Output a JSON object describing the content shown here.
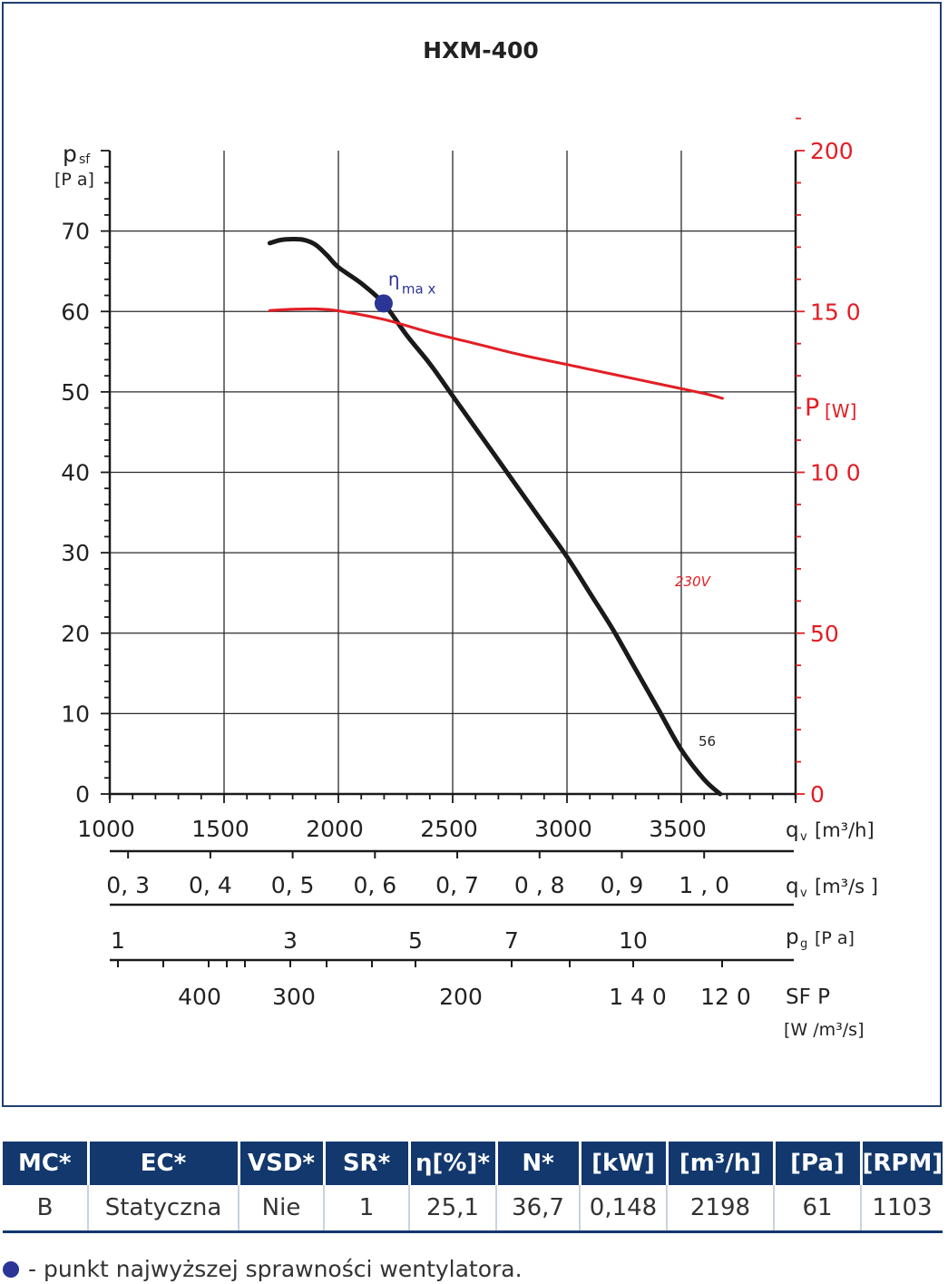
{
  "chart_data": {
    "type": "line",
    "title": "HXM-400",
    "y_left": {
      "label_main": "p",
      "label_sub": "sf",
      "unit": "[P a]",
      "ticks": [
        "0",
        "10",
        "20",
        "30",
        "40",
        "50",
        "60",
        "70"
      ],
      "range": [
        0,
        80
      ]
    },
    "y_right": {
      "label_main": "P",
      "unit": "[W]",
      "ticks": [
        "0",
        "50",
        "10 0",
        "15 0",
        "200"
      ],
      "tick_values": [
        0,
        50,
        100,
        150,
        200
      ],
      "range": [
        0,
        200
      ]
    },
    "x": {
      "label_main": "q",
      "label_sub": "v",
      "unit": "[m³/h]",
      "ticks": [
        "1000",
        "1500",
        "2000",
        "2500",
        "3000",
        "3500"
      ],
      "tick_values": [
        1000,
        1500,
        2000,
        2500,
        3000,
        3500
      ],
      "range": [
        1000,
        4000
      ]
    },
    "series": [
      {
        "name": "56",
        "axis": "left",
        "color": "#1a1a1a",
        "x": [
          1700,
          1750,
          1800,
          1850,
          1900,
          1950,
          2000,
          2100,
          2198,
          2300,
          2400,
          2500,
          2600,
          2700,
          2800,
          2900,
          3000,
          3100,
          3200,
          3300,
          3400,
          3500,
          3600,
          3670
        ],
        "y": [
          68.5,
          68.9,
          69.0,
          68.9,
          68.3,
          67.0,
          65.5,
          63.5,
          61.0,
          57.0,
          53.5,
          49.5,
          45.5,
          41.5,
          37.5,
          33.5,
          29.5,
          25.0,
          20.5,
          15.5,
          10.5,
          5.5,
          1.8,
          0.0
        ]
      },
      {
        "name": "230V",
        "axis": "right",
        "color": "#e31e24",
        "x": [
          1700,
          1800,
          1900,
          2000,
          2200,
          2400,
          2600,
          2800,
          3000,
          3200,
          3400,
          3600,
          3680
        ],
        "y": [
          150.3,
          150.7,
          150.8,
          150.2,
          147.5,
          143.5,
          140.0,
          136.5,
          133.5,
          130.5,
          127.5,
          124.5,
          123.0
        ]
      }
    ],
    "eta_max": {
      "x": 2198,
      "y": 61.0,
      "label_main": "η",
      "label_sub": "ma x"
    },
    "scales": [
      {
        "label_main": "q",
        "label_sub": "v",
        "unit": "[m³/s ]",
        "ticks": [
          {
            "text": "0, 3",
            "v": 0.3
          },
          {
            "text": "0, 4",
            "v": 0.4
          },
          {
            "text": "0, 5",
            "v": 0.5
          },
          {
            "text": "0, 6",
            "v": 0.6
          },
          {
            "text": "0, 7",
            "v": 0.7
          },
          {
            "text": "0 , 8",
            "v": 0.8
          },
          {
            "text": "0, 9",
            "v": 0.9
          },
          {
            "text": "1 , 0",
            "v": 1.0
          }
        ]
      },
      {
        "label_main": "p",
        "label_sub": "g",
        "unit": "[P a]",
        "ticks": [
          {
            "text": "1",
            "v": 1
          },
          {
            "text": "3",
            "v": 3
          },
          {
            "text": "5",
            "v": 5
          },
          {
            "text": "7",
            "v": 7
          },
          {
            "text": "10",
            "v": 10
          }
        ]
      },
      {
        "label_main": "SF P",
        "unit": "[W /m³/s]",
        "ticks": [
          {
            "text": "400",
            "v": 400
          },
          {
            "text": "300",
            "v": 300
          },
          {
            "text": "200",
            "v": 200
          },
          {
            "text": "1 4 0",
            "v": 140
          },
          {
            "text": "12 0",
            "v": 120
          }
        ]
      }
    ],
    "grid": true
  },
  "table": {
    "headers": [
      "MC*",
      "EC*",
      "VSD*",
      "SR*",
      "η[%]*",
      "N*",
      "[kW]",
      "[m³/h]",
      "[Pa]",
      "[RPM]"
    ],
    "row": [
      "B",
      "Statyczna",
      "Nie",
      "1",
      "25,1",
      "36,7",
      "0,148",
      "2198",
      "61",
      "1103"
    ]
  },
  "legend_note": "- punkt najwyższej sprawności wentylatora.",
  "colors": {
    "frame": "#1f3f73",
    "header_bg": "#12386e",
    "power": "#e31e24",
    "eta_dot": "#2a3596"
  }
}
